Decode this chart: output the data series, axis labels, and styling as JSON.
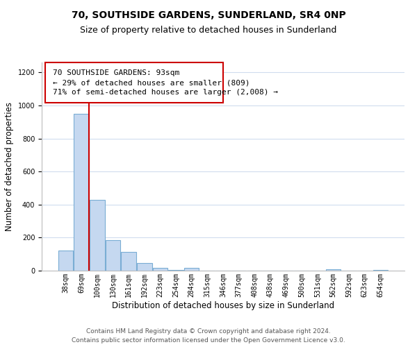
{
  "title": "70, SOUTHSIDE GARDENS, SUNDERLAND, SR4 0NP",
  "subtitle": "Size of property relative to detached houses in Sunderland",
  "xlabel": "Distribution of detached houses by size in Sunderland",
  "ylabel": "Number of detached properties",
  "bin_labels": [
    "38sqm",
    "69sqm",
    "100sqm",
    "130sqm",
    "161sqm",
    "192sqm",
    "223sqm",
    "254sqm",
    "284sqm",
    "315sqm",
    "346sqm",
    "377sqm",
    "408sqm",
    "438sqm",
    "469sqm",
    "500sqm",
    "531sqm",
    "562sqm",
    "592sqm",
    "623sqm",
    "654sqm"
  ],
  "bar_values": [
    120,
    950,
    430,
    185,
    115,
    47,
    18,
    3,
    16,
    2,
    0,
    0,
    0,
    0,
    0,
    0,
    0,
    8,
    0,
    0,
    3
  ],
  "bar_color": "#c5d8f0",
  "bar_edge_color": "#7aadd4",
  "vline_x": 1.5,
  "vline_color": "#cc0000",
  "annotation_box_text": "70 SOUTHSIDE GARDENS: 93sqm\n← 29% of detached houses are smaller (809)\n71% of semi-detached houses are larger (2,008) →",
  "ylim": [
    0,
    1260
  ],
  "yticks": [
    0,
    200,
    400,
    600,
    800,
    1000,
    1200
  ],
  "footer_line1": "Contains HM Land Registry data © Crown copyright and database right 2024.",
  "footer_line2": "Contains public sector information licensed under the Open Government Licence v3.0.",
  "background_color": "#ffffff",
  "grid_color": "#d0dcee",
  "title_fontsize": 10,
  "subtitle_fontsize": 9,
  "axis_label_fontsize": 8.5,
  "tick_label_fontsize": 7,
  "annotation_fontsize": 8,
  "footer_fontsize": 6.5
}
